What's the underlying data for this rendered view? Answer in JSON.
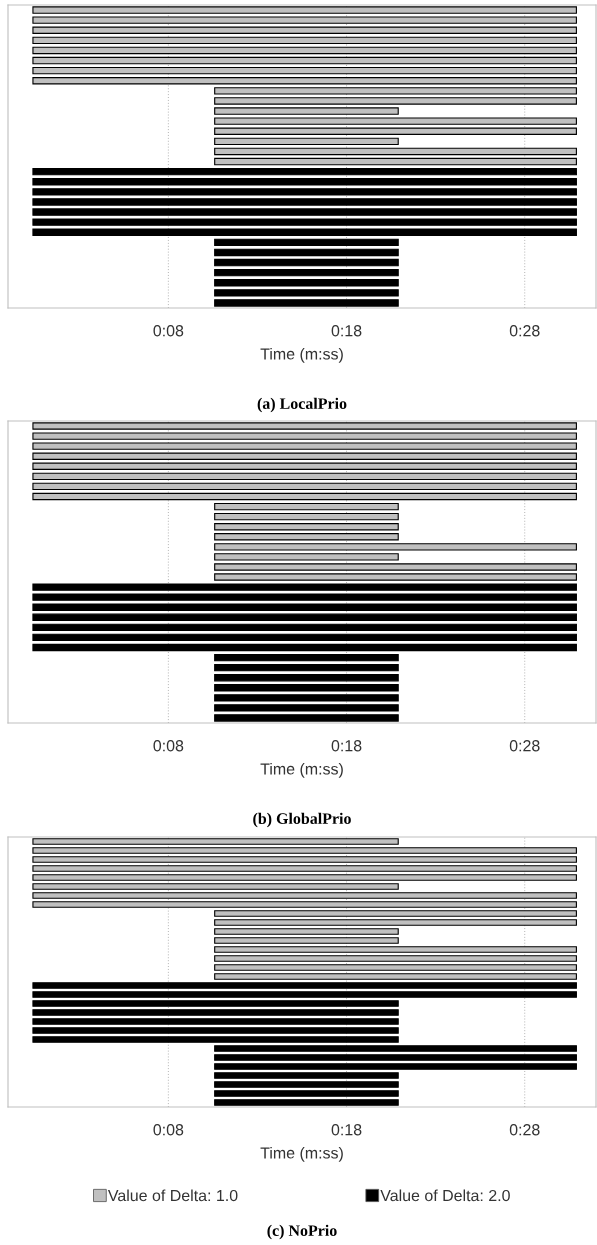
{
  "chart_data": [
    {
      "type": "bar",
      "orientation": "horizontal",
      "title": "(a) LocalPrio",
      "xlabel": "Time (m:ss)",
      "categories": [
        null,
        null,
        null,
        null,
        null,
        null,
        null,
        null,
        null,
        null,
        null,
        null,
        null,
        null,
        null,
        null,
        null,
        null,
        null,
        null,
        null,
        null,
        null,
        null,
        null,
        null,
        null,
        null,
        null,
        null
      ],
      "xlim": [
        -1,
        32
      ],
      "xticks": [
        {
          "value": 8,
          "label": "0:08"
        },
        {
          "value": 18,
          "label": "0:18"
        },
        {
          "value": 28,
          "label": "0:28"
        }
      ],
      "grid": "x",
      "legend": false,
      "tick_labels": "x",
      "series": [
        {
          "color": "#c0c0c0",
          "values": [
            30.5,
            30.5,
            30.5,
            30.5,
            30.5,
            30.5,
            30.5,
            30.5,
            20.3,
            20.3,
            10.3,
            20.3,
            20.3,
            10.3,
            20.3,
            20.3,
            null,
            null,
            null,
            null,
            null,
            null,
            null,
            null,
            null,
            null,
            null,
            null,
            null,
            null
          ],
          "base": [
            0.4,
            0.4,
            0.4,
            0.4,
            0.4,
            0.4,
            0.4,
            0.4,
            10.6,
            10.6,
            10.6,
            10.6,
            10.6,
            10.6,
            10.6,
            10.6,
            null,
            null,
            null,
            null,
            null,
            null,
            null,
            null,
            null,
            null,
            null,
            null,
            null,
            null
          ]
        },
        {
          "color": "#000000",
          "values": [
            null,
            null,
            null,
            null,
            null,
            null,
            null,
            null,
            null,
            null,
            null,
            null,
            null,
            null,
            null,
            null,
            30.5,
            30.5,
            30.5,
            30.5,
            30.5,
            30.5,
            30.5,
            10.3,
            10.3,
            10.3,
            10.3,
            10.3,
            10.3,
            10.3
          ],
          "base": [
            null,
            null,
            null,
            null,
            null,
            null,
            null,
            null,
            null,
            null,
            null,
            null,
            null,
            null,
            null,
            null,
            0.4,
            0.4,
            0.4,
            0.4,
            0.4,
            0.4,
            0.4,
            10.6,
            10.6,
            10.6,
            10.6,
            10.6,
            10.6,
            10.6
          ]
        }
      ]
    },
    {
      "type": "bar",
      "orientation": "horizontal",
      "title": "(b) GlobalPrio",
      "xlabel": "Time (m:ss)",
      "categories": [
        null,
        null,
        null,
        null,
        null,
        null,
        null,
        null,
        null,
        null,
        null,
        null,
        null,
        null,
        null,
        null,
        null,
        null,
        null,
        null,
        null,
        null,
        null,
        null,
        null,
        null,
        null,
        null,
        null,
        null
      ],
      "xlim": [
        -1,
        32
      ],
      "xticks": [
        {
          "value": 8,
          "label": "0:08"
        },
        {
          "value": 18,
          "label": "0:18"
        },
        {
          "value": 28,
          "label": "0:28"
        }
      ],
      "grid": "x",
      "legend": false,
      "tick_labels": "x",
      "series": [
        {
          "color": "#c0c0c0",
          "values": [
            30.5,
            30.5,
            30.5,
            30.5,
            30.5,
            30.5,
            30.5,
            30.5,
            10.3,
            10.3,
            10.3,
            10.3,
            20.3,
            10.3,
            20.3,
            20.3,
            null,
            null,
            null,
            null,
            null,
            null,
            null,
            null,
            null,
            null,
            null,
            null,
            null,
            null
          ],
          "base": [
            0.4,
            0.4,
            0.4,
            0.4,
            0.4,
            0.4,
            0.4,
            0.4,
            10.6,
            10.6,
            10.6,
            10.6,
            10.6,
            10.6,
            10.6,
            10.6,
            null,
            null,
            null,
            null,
            null,
            null,
            null,
            null,
            null,
            null,
            null,
            null,
            null,
            null
          ]
        },
        {
          "color": "#000000",
          "values": [
            null,
            null,
            null,
            null,
            null,
            null,
            null,
            null,
            null,
            null,
            null,
            null,
            null,
            null,
            null,
            null,
            30.5,
            30.5,
            30.5,
            30.5,
            30.5,
            30.5,
            30.5,
            10.3,
            10.3,
            10.3,
            10.3,
            10.3,
            10.3,
            10.3
          ],
          "base": [
            null,
            null,
            null,
            null,
            null,
            null,
            null,
            null,
            null,
            null,
            null,
            null,
            null,
            null,
            null,
            null,
            0.4,
            0.4,
            0.4,
            0.4,
            0.4,
            0.4,
            0.4,
            10.6,
            10.6,
            10.6,
            10.6,
            10.6,
            10.6,
            10.6
          ]
        }
      ]
    },
    {
      "type": "bar",
      "orientation": "horizontal",
      "title": "(c) NoPrio",
      "xlabel": "Time (m:ss)",
      "categories": [
        null,
        null,
        null,
        null,
        null,
        null,
        null,
        null,
        null,
        null,
        null,
        null,
        null,
        null,
        null,
        null,
        null,
        null,
        null,
        null,
        null,
        null,
        null,
        null,
        null,
        null,
        null,
        null,
        null,
        null
      ],
      "xlim": [
        -1,
        32
      ],
      "xticks": [
        {
          "value": 8,
          "label": "0:08"
        },
        {
          "value": 18,
          "label": "0:18"
        },
        {
          "value": 28,
          "label": "0:28"
        }
      ],
      "grid": "x",
      "legend": "bottom",
      "tick_labels": "x",
      "series": [
        {
          "name": "Value of Delta: 1.0",
          "color": "#c0c0c0",
          "values": [
            20.5,
            30.5,
            30.5,
            30.5,
            30.5,
            20.5,
            30.5,
            30.5,
            20.3,
            20.3,
            10.3,
            10.3,
            20.3,
            20.3,
            20.3,
            20.3,
            null,
            null,
            null,
            null,
            null,
            null,
            null,
            null,
            null,
            null,
            null,
            null,
            null,
            null
          ],
          "base": [
            0.4,
            0.4,
            0.4,
            0.4,
            0.4,
            0.4,
            0.4,
            0.4,
            10.6,
            10.6,
            10.6,
            10.6,
            10.6,
            10.6,
            10.6,
            10.6,
            null,
            null,
            null,
            null,
            null,
            null,
            null,
            null,
            null,
            null,
            null,
            null,
            null,
            null
          ]
        },
        {
          "name": "Value of Delta: 2.0",
          "color": "#000000",
          "values": [
            null,
            null,
            null,
            null,
            null,
            null,
            null,
            null,
            null,
            null,
            null,
            null,
            null,
            null,
            null,
            null,
            30.5,
            30.5,
            20.5,
            20.5,
            20.5,
            20.5,
            20.5,
            20.3,
            20.3,
            20.3,
            10.3,
            10.3,
            10.3,
            10.3
          ],
          "base": [
            null,
            null,
            null,
            null,
            null,
            null,
            null,
            null,
            null,
            null,
            null,
            null,
            null,
            null,
            null,
            null,
            0.4,
            0.4,
            0.4,
            0.4,
            0.4,
            0.4,
            0.4,
            10.6,
            10.6,
            10.6,
            10.6,
            10.6,
            10.6,
            10.6
          ]
        }
      ]
    }
  ]
}
